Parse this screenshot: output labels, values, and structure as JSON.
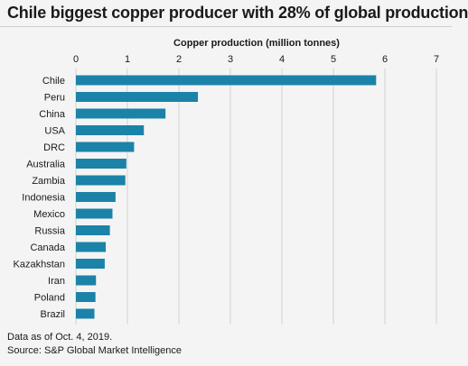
{
  "chart_data": {
    "type": "bar",
    "orientation": "horizontal",
    "title": "Chile biggest copper producer with 28% of global production",
    "xlabel": "Copper production (million tonnes)",
    "ylabel": "",
    "xlim": [
      0,
      7
    ],
    "ticks": [
      "0",
      "1",
      "2",
      "3",
      "4",
      "5",
      "6",
      "7"
    ],
    "grid": true,
    "bar_color": "#1b82a8",
    "categories": [
      "Chile",
      "Peru",
      "China",
      "USA",
      "DRC",
      "Australia",
      "Zambia",
      "Indonesia",
      "Mexico",
      "Russia",
      "Canada",
      "Kazakhstan",
      "Iran",
      "Poland",
      "Brazil"
    ],
    "values": [
      5.83,
      2.37,
      1.74,
      1.32,
      1.13,
      0.98,
      0.96,
      0.77,
      0.71,
      0.66,
      0.58,
      0.56,
      0.39,
      0.38,
      0.36
    ]
  },
  "notes": {
    "data_as_of": "Data as of Oct. 4, 2019.",
    "source": "Source: S&P Global Market Intelligence"
  }
}
